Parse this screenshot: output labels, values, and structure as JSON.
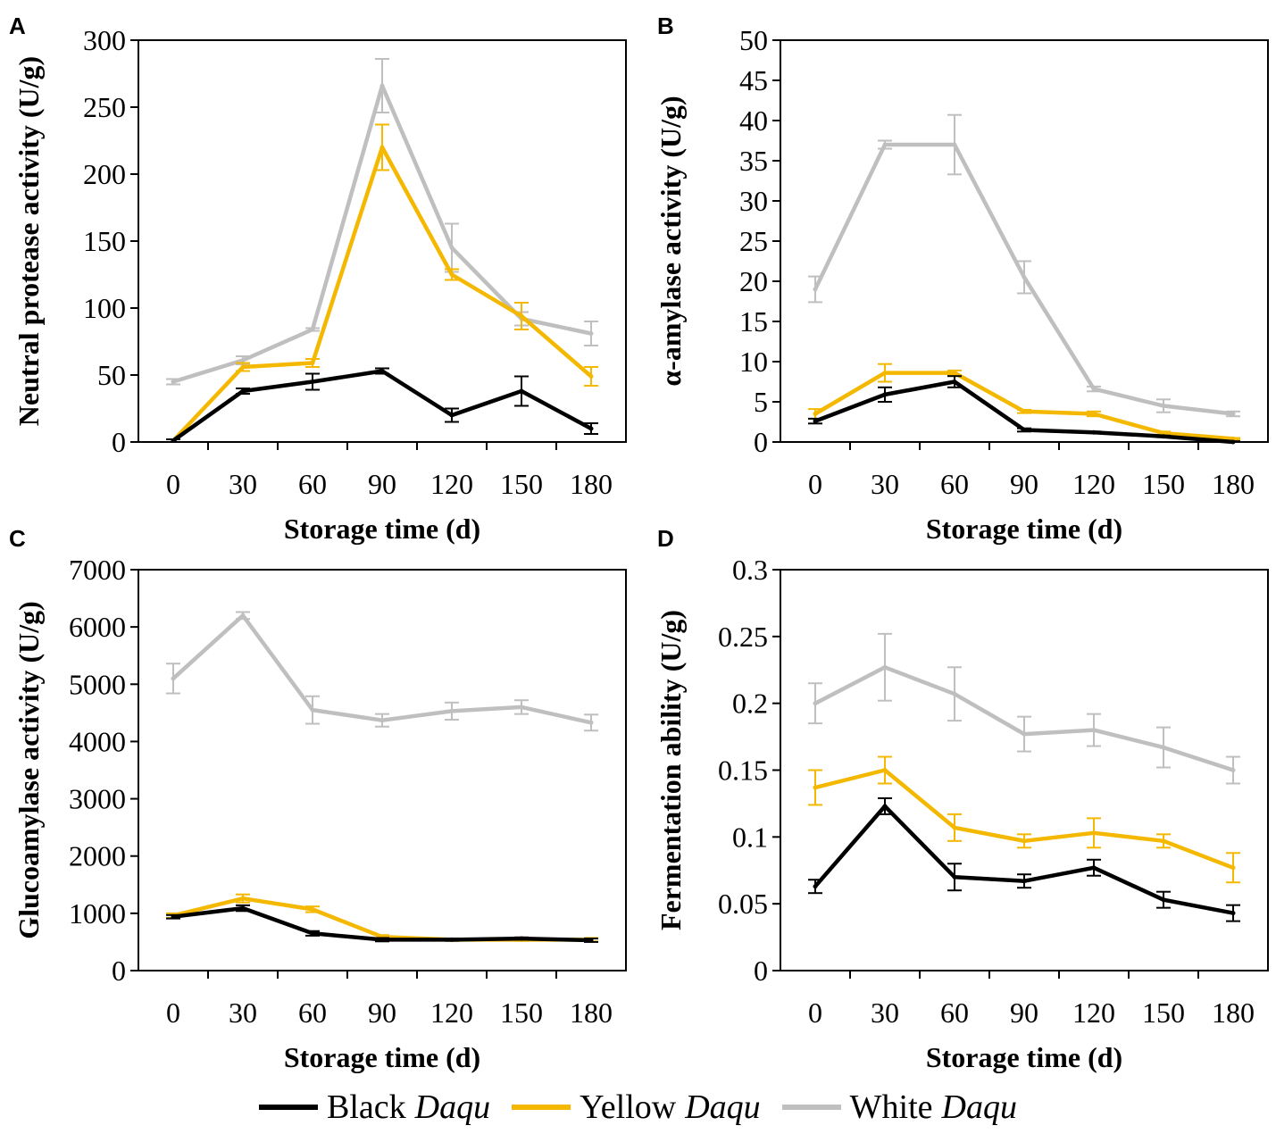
{
  "colors": {
    "black": "#000000",
    "yellow": "#F5B800",
    "white": "#BFBFBF"
  },
  "legend": {
    "items": [
      {
        "key": "black",
        "label": "Black",
        "italic": "Daqu"
      },
      {
        "key": "yellow",
        "label": "Yellow",
        "italic": "Daqu"
      },
      {
        "key": "white",
        "label": "White",
        "italic": "Daqu"
      }
    ]
  },
  "chart_data": [
    {
      "panel": "A",
      "type": "line",
      "xlabel": "Storage time (d)",
      "ylabel": "Neutral protease activity (U/g)",
      "ylim": [
        0,
        300
      ],
      "yticks": [
        "0",
        "50",
        "100",
        "150",
        "200",
        "250",
        "300"
      ],
      "x": [
        "0",
        "30",
        "60",
        "90",
        "120",
        "150",
        "180"
      ],
      "series": [
        {
          "name": "White Daqu",
          "color_key": "white",
          "values": [
            45,
            61,
            84,
            266,
            145,
            92,
            81
          ],
          "errors": [
            2,
            3,
            1,
            20,
            18,
            5,
            9
          ]
        },
        {
          "name": "Yellow Daqu",
          "color_key": "yellow",
          "values": [
            1,
            56,
            59,
            220,
            125,
            94,
            49
          ],
          "errors": [
            1,
            3,
            3,
            17,
            4,
            10,
            7
          ]
        },
        {
          "name": "Black Daqu",
          "color_key": "black",
          "values": [
            1,
            38,
            45,
            53,
            20,
            38,
            10
          ],
          "errors": [
            1,
            2,
            6,
            2,
            5,
            11,
            4
          ]
        }
      ]
    },
    {
      "panel": "B",
      "type": "line",
      "xlabel": "Storage time (d)",
      "ylabel": "α-amylase activity (U/g)",
      "ylim": [
        0,
        50
      ],
      "yticks": [
        "0",
        "5",
        "10",
        "15",
        "20",
        "25",
        "30",
        "35",
        "40",
        "45",
        "50"
      ],
      "x": [
        "0",
        "30",
        "60",
        "90",
        "120",
        "150",
        "180"
      ],
      "series": [
        {
          "name": "White Daqu",
          "color_key": "white",
          "values": [
            19,
            37,
            37,
            20.5,
            6.6,
            4.5,
            3.5
          ],
          "errors": [
            1.6,
            0.5,
            3.7,
            2,
            0.3,
            0.8,
            0.3
          ]
        },
        {
          "name": "Yellow Daqu",
          "color_key": "yellow",
          "values": [
            3.5,
            8.6,
            8.6,
            3.8,
            3.5,
            1.1,
            0.4
          ],
          "errors": [
            0.6,
            1.1,
            0.3,
            0.2,
            0.3,
            0.2,
            0.1
          ]
        },
        {
          "name": "Black Daqu",
          "color_key": "black",
          "values": [
            2.6,
            5.9,
            7.5,
            1.5,
            1.2,
            0.7,
            0
          ],
          "errors": [
            0.3,
            0.9,
            0.7,
            0.2,
            0.1,
            0.1,
            0.1
          ]
        }
      ]
    },
    {
      "panel": "C",
      "type": "line",
      "xlabel": "Storage time (d)",
      "ylabel": "Glucoamylase activity (U/g)",
      "ylim": [
        0,
        7000
      ],
      "yticks": [
        "0",
        "1000",
        "2000",
        "3000",
        "4000",
        "5000",
        "6000",
        "7000"
      ],
      "x": [
        "0",
        "30",
        "60",
        "90",
        "120",
        "150",
        "180"
      ],
      "series": [
        {
          "name": "White Daqu",
          "color_key": "white",
          "values": [
            5100,
            6200,
            4550,
            4370,
            4530,
            4600,
            4330
          ],
          "errors": [
            260,
            60,
            240,
            110,
            150,
            120,
            140
          ]
        },
        {
          "name": "Yellow Daqu",
          "color_key": "yellow",
          "values": [
            960,
            1260,
            1070,
            590,
            540,
            540,
            540
          ],
          "errors": [
            40,
            70,
            50,
            30,
            20,
            20,
            30
          ]
        },
        {
          "name": "Black Daqu",
          "color_key": "black",
          "values": [
            940,
            1090,
            650,
            540,
            540,
            560,
            530
          ],
          "errors": [
            30,
            50,
            40,
            30,
            20,
            20,
            30
          ]
        }
      ]
    },
    {
      "panel": "D",
      "type": "line",
      "xlabel": "Storage time (d)",
      "ylabel": "Fermentation ability (U/g)",
      "ylim": [
        0,
        0.3
      ],
      "yticks": [
        "0",
        "0.05",
        "0.1",
        "0.15",
        "0.2",
        "0.25",
        "0.3"
      ],
      "x": [
        "0",
        "30",
        "60",
        "90",
        "120",
        "150",
        "180"
      ],
      "series": [
        {
          "name": "White Daqu",
          "color_key": "white",
          "values": [
            0.2,
            0.227,
            0.207,
            0.177,
            0.18,
            0.167,
            0.15
          ],
          "errors": [
            0.015,
            0.025,
            0.02,
            0.013,
            0.012,
            0.015,
            0.01
          ]
        },
        {
          "name": "Yellow Daqu",
          "color_key": "yellow",
          "values": [
            0.137,
            0.15,
            0.107,
            0.097,
            0.103,
            0.097,
            0.077
          ],
          "errors": [
            0.013,
            0.01,
            0.01,
            0.005,
            0.011,
            0.005,
            0.011
          ]
        },
        {
          "name": "Black Daqu",
          "color_key": "black",
          "values": [
            0.063,
            0.123,
            0.07,
            0.067,
            0.077,
            0.053,
            0.043
          ],
          "errors": [
            0.005,
            0.006,
            0.01,
            0.005,
            0.006,
            0.006,
            0.006
          ]
        }
      ]
    }
  ]
}
